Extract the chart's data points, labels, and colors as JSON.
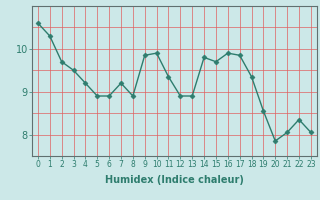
{
  "x": [
    0,
    1,
    2,
    3,
    4,
    5,
    6,
    7,
    8,
    9,
    10,
    11,
    12,
    13,
    14,
    15,
    16,
    17,
    18,
    19,
    20,
    21,
    22,
    23
  ],
  "y": [
    10.6,
    10.3,
    9.7,
    9.5,
    9.2,
    8.9,
    8.9,
    9.2,
    8.9,
    9.85,
    9.9,
    9.35,
    8.9,
    8.9,
    9.8,
    9.7,
    9.9,
    9.85,
    9.35,
    8.55,
    7.85,
    8.05,
    8.35,
    8.05
  ],
  "title": "",
  "xlabel": "Humidex (Indice chaleur)",
  "ylabel": "",
  "line_color": "#2e7d6e",
  "marker": "D",
  "marker_size": 2.5,
  "bg_color": "#cce8e8",
  "grid_color": "#e06060",
  "xlim": [
    -0.5,
    23.5
  ],
  "ylim": [
    7.5,
    11.0
  ],
  "yticks": [
    8,
    9,
    10
  ],
  "xticks": [
    0,
    1,
    2,
    3,
    4,
    5,
    6,
    7,
    8,
    9,
    10,
    11,
    12,
    13,
    14,
    15,
    16,
    17,
    18,
    19,
    20,
    21,
    22,
    23
  ]
}
